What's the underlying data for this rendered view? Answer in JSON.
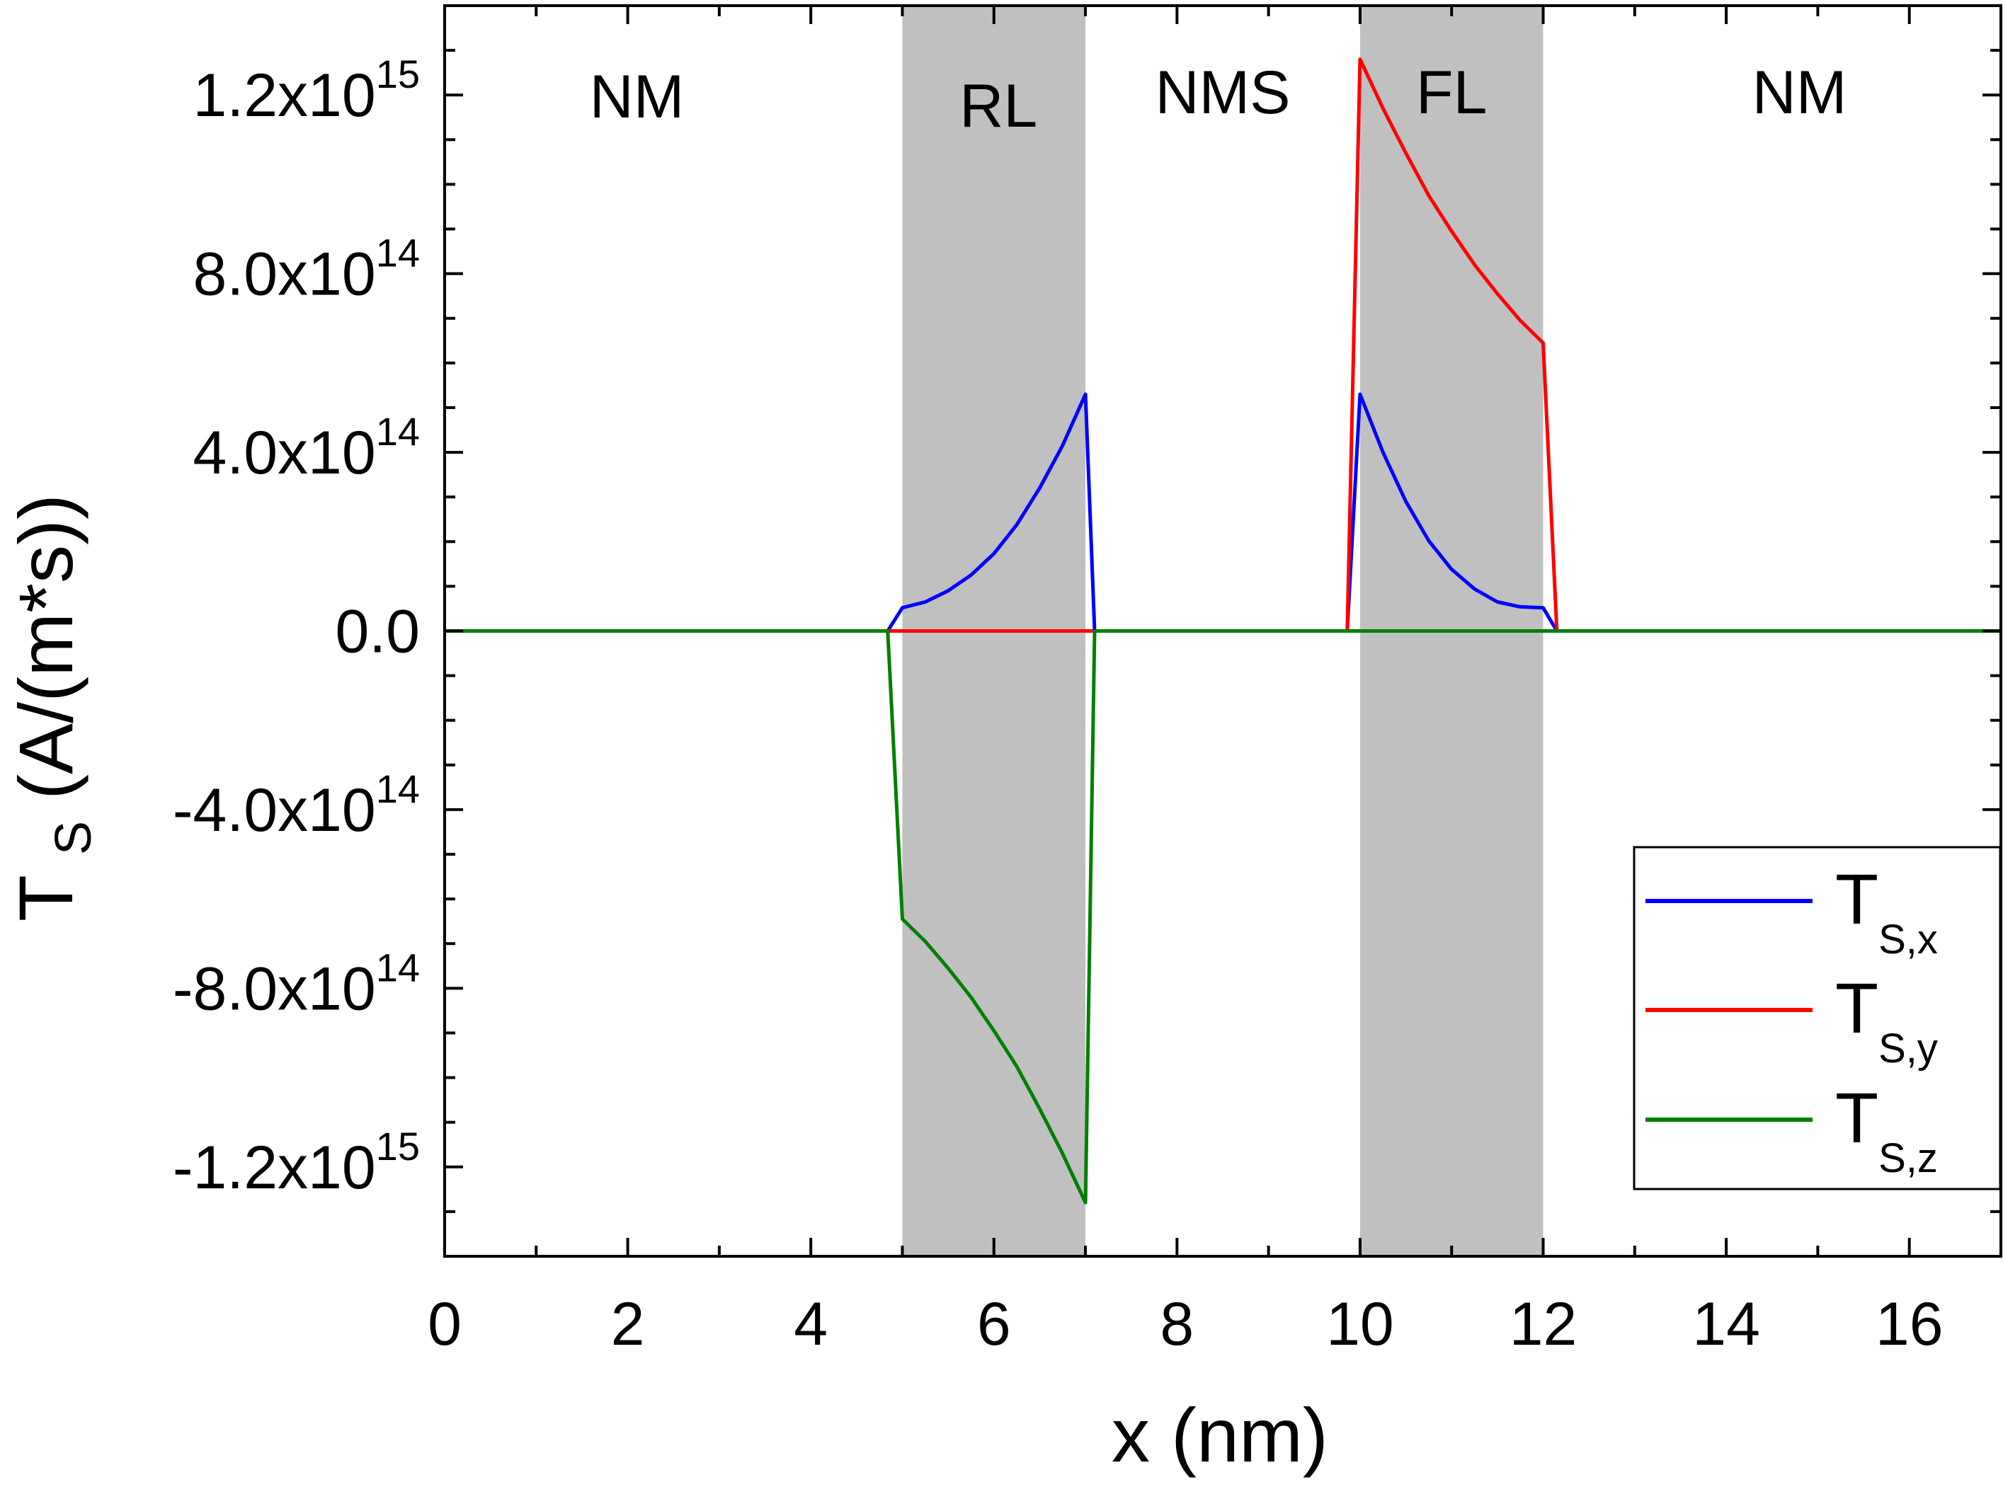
{
  "chart_data": {
    "type": "line",
    "title": "",
    "xlabel": "x (nm)",
    "ylabel": {
      "main": "T",
      "sub": "S",
      "rest": " (A/(m*s))"
    },
    "xlim": [
      0,
      17
    ],
    "ylim": [
      -1400000000000000.0,
      1400000000000000.0
    ],
    "x_ticks": [
      0,
      2,
      4,
      6,
      8,
      10,
      12,
      14,
      16
    ],
    "x_tick_labels": [
      "0",
      "2",
      "4",
      "6",
      "8",
      "10",
      "12",
      "14",
      "16"
    ],
    "y_ticks": [
      {
        "value": 1200000000000000.0,
        "label": "1.2x10",
        "exp": "15"
      },
      {
        "value": 800000000000000.0,
        "label": "8.0x10",
        "exp": "14"
      },
      {
        "value": 400000000000000.0,
        "label": "4.0x10",
        "exp": "14"
      },
      {
        "value": 0,
        "label": "0.0",
        "exp": ""
      },
      {
        "value": -400000000000000.0,
        "label": "-4.0x10",
        "exp": "14"
      },
      {
        "value": -800000000000000.0,
        "label": "-8.0x10",
        "exp": "14"
      },
      {
        "value": -1200000000000000.0,
        "label": "-1.2x10",
        "exp": "15"
      }
    ],
    "shaded_regions": [
      {
        "name": "RL",
        "x0": 5,
        "x1": 7,
        "color": "#c0c0c0"
      },
      {
        "name": "FL",
        "x0": 10,
        "x1": 12,
        "color": "#c0c0c0"
      }
    ],
    "region_labels": [
      {
        "text": "NM",
        "x": 2.1,
        "y": 1200000000000000.0
      },
      {
        "text": "RL",
        "x": 6.05,
        "y": 1180000000000000.0
      },
      {
        "text": "NMS",
        "x": 8.5,
        "y": 1210000000000000.0
      },
      {
        "text": "FL",
        "x": 11.0,
        "y": 1210000000000000.0
      },
      {
        "text": "NM",
        "x": 14.8,
        "y": 1210000000000000.0
      }
    ],
    "series": [
      {
        "name": "Ts,x",
        "label_main": "T",
        "label_sub": "S,x",
        "color": "#0000ff",
        "x": [
          0,
          4.84,
          5.0,
          5.25,
          5.5,
          5.75,
          6.0,
          6.25,
          6.5,
          6.75,
          7.0,
          7.1,
          9.86,
          10.0,
          10.25,
          10.5,
          10.75,
          11.0,
          11.25,
          11.5,
          11.75,
          12.0,
          12.15,
          17
        ],
        "y": [
          0,
          0,
          52000000000000.0,
          65000000000000.0,
          90000000000000.0,
          125000000000000.0,
          173000000000000.0,
          238000000000000.0,
          320000000000000.0,
          415000000000000.0,
          530000000000000.0,
          0,
          0,
          530000000000000.0,
          400000000000000.0,
          290000000000000.0,
          202000000000000.0,
          138000000000000.0,
          94000000000000.0,
          65000000000000.0,
          54000000000000.0,
          52000000000000.0,
          0,
          0
        ]
      },
      {
        "name": "Ts,y",
        "label_main": "T",
        "label_sub": "S,y",
        "color": "#ff0000",
        "x": [
          0,
          9.86,
          10.0,
          10.25,
          10.5,
          10.75,
          11.0,
          11.25,
          11.5,
          11.75,
          12.0,
          12.15,
          17
        ],
        "y": [
          0,
          0,
          1280000000000000.0,
          1170000000000000.0,
          1070000000000000.0,
          975000000000000.0,
          895000000000000.0,
          820000000000000.0,
          755000000000000.0,
          695000000000000.0,
          645000000000000.0,
          0,
          0
        ]
      },
      {
        "name": "Ts,z",
        "label_main": "T",
        "label_sub": "S,z",
        "color": "#008000",
        "x": [
          0,
          4.84,
          5.0,
          5.25,
          5.5,
          5.75,
          6.0,
          6.25,
          6.5,
          6.75,
          7.0,
          7.1,
          17
        ],
        "y": [
          0,
          0,
          -645000000000000.0,
          -695000000000000.0,
          -755000000000000.0,
          -820000000000000.0,
          -895000000000000.0,
          -975000000000000.0,
          -1070000000000000.0,
          -1170000000000000.0,
          -1280000000000000.0,
          0,
          0
        ]
      }
    ],
    "legend_position": "bottom-right",
    "grid": false
  }
}
